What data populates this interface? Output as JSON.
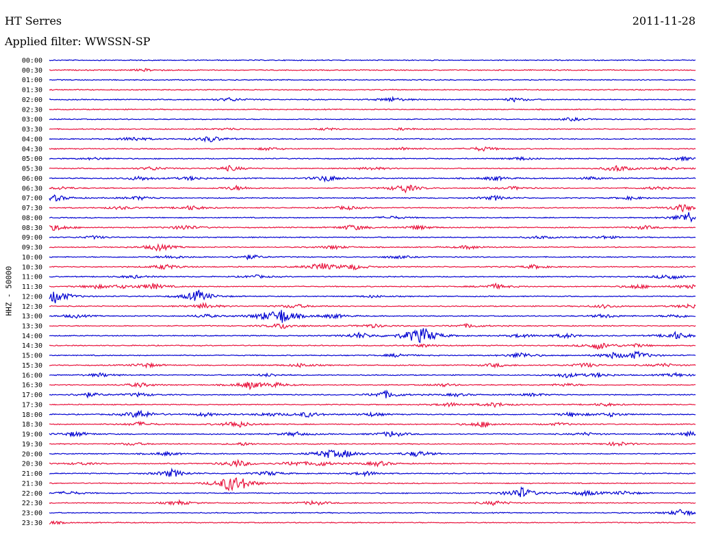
{
  "header": {
    "station": "HT Serres",
    "date": "2011-11-28",
    "filter": "Applied filter: WWSSN-SP"
  },
  "chart_data": {
    "type": "line",
    "ylabel": "HHZ - 50000",
    "colors": [
      "#0000d0",
      "#e8103a"
    ],
    "rows": [
      {
        "time": "00:00",
        "events": []
      },
      {
        "time": "00:30",
        "events": [
          [
            0.15,
            0.3
          ]
        ]
      },
      {
        "time": "01:00",
        "events": []
      },
      {
        "time": "01:30",
        "events": []
      },
      {
        "time": "02:00",
        "events": [
          [
            0.28,
            0.5
          ],
          [
            0.53,
            0.6
          ],
          [
            0.72,
            0.5
          ]
        ]
      },
      {
        "time": "02:30",
        "events": []
      },
      {
        "time": "03:00",
        "events": [
          [
            0.81,
            0.4
          ]
        ]
      },
      {
        "time": "03:30",
        "events": [
          [
            0.28,
            0.3
          ],
          [
            0.43,
            0.3
          ],
          [
            0.55,
            0.3
          ]
        ]
      },
      {
        "time": "04:00",
        "events": [
          [
            0.13,
            0.6
          ],
          [
            0.25,
            0.8
          ]
        ]
      },
      {
        "time": "04:30",
        "events": [
          [
            0.34,
            0.4
          ],
          [
            0.55,
            0.4
          ],
          [
            0.67,
            0.6
          ]
        ]
      },
      {
        "time": "05:00",
        "events": [
          [
            0.07,
            0.3
          ],
          [
            0.73,
            0.4
          ],
          [
            0.98,
            0.5
          ]
        ]
      },
      {
        "time": "05:30",
        "events": [
          [
            0.16,
            0.5
          ],
          [
            0.28,
            0.7
          ],
          [
            0.5,
            0.4
          ],
          [
            0.88,
            0.9
          ],
          [
            0.96,
            0.4
          ]
        ]
      },
      {
        "time": "06:00",
        "events": [
          [
            0.14,
            0.6
          ],
          [
            0.22,
            0.5
          ],
          [
            0.43,
            0.9
          ],
          [
            0.69,
            0.6
          ],
          [
            0.84,
            0.4
          ]
        ]
      },
      {
        "time": "06:30",
        "events": [
          [
            0.02,
            0.4
          ],
          [
            0.29,
            0.6
          ],
          [
            0.55,
            1.2
          ],
          [
            0.72,
            0.4
          ],
          [
            0.94,
            0.4
          ]
        ]
      },
      {
        "time": "07:00",
        "events": [
          [
            0.01,
            0.8
          ],
          [
            0.14,
            0.5
          ],
          [
            0.69,
            0.6
          ],
          [
            0.9,
            0.4
          ]
        ]
      },
      {
        "time": "07:30",
        "events": [
          [
            0.11,
            0.4
          ],
          [
            0.22,
            0.6
          ],
          [
            0.46,
            0.5
          ],
          [
            0.98,
            1.0
          ]
        ]
      },
      {
        "time": "08:00",
        "events": [
          [
            0.53,
            0.4
          ],
          [
            0.99,
            1.6
          ]
        ]
      },
      {
        "time": "08:30",
        "events": [
          [
            0.01,
            0.8
          ],
          [
            0.21,
            0.7
          ],
          [
            0.47,
            0.8
          ],
          [
            0.57,
            0.6
          ],
          [
            0.92,
            0.5
          ]
        ]
      },
      {
        "time": "09:00",
        "events": [
          [
            0.07,
            0.4
          ],
          [
            0.76,
            0.4
          ],
          [
            0.86,
            0.4
          ]
        ]
      },
      {
        "time": "09:30",
        "events": [
          [
            0.17,
            1.0
          ],
          [
            0.44,
            0.5
          ],
          [
            0.65,
            0.5
          ]
        ]
      },
      {
        "time": "10:00",
        "events": [
          [
            0.19,
            0.5
          ],
          [
            0.31,
            0.6
          ],
          [
            0.54,
            0.4
          ]
        ]
      },
      {
        "time": "10:30",
        "events": [
          [
            0.18,
            0.7
          ],
          [
            0.42,
            1.1
          ],
          [
            0.47,
            0.7
          ],
          [
            0.75,
            0.5
          ]
        ]
      },
      {
        "time": "11:00",
        "events": [
          [
            0.13,
            0.4
          ],
          [
            0.32,
            0.4
          ],
          [
            0.96,
            0.8
          ]
        ]
      },
      {
        "time": "11:30",
        "events": [
          [
            0.07,
            0.5
          ],
          [
            0.11,
            0.4
          ],
          [
            0.16,
            0.8
          ],
          [
            0.69,
            0.7
          ],
          [
            0.91,
            0.6
          ],
          [
            0.99,
            0.6
          ]
        ]
      },
      {
        "time": "12:00",
        "events": [
          [
            0.01,
            1.9
          ],
          [
            0.23,
            1.6
          ],
          [
            0.5,
            0.3
          ]
        ]
      },
      {
        "time": "12:30",
        "events": [
          [
            0.24,
            0.7
          ],
          [
            0.38,
            0.6
          ],
          [
            0.86,
            0.5
          ],
          [
            0.99,
            0.6
          ]
        ]
      },
      {
        "time": "13:00",
        "events": [
          [
            0.04,
            0.5
          ],
          [
            0.24,
            0.5
          ],
          [
            0.33,
            0.6
          ],
          [
            0.36,
            2.0
          ],
          [
            0.44,
            0.6
          ],
          [
            0.86,
            0.5
          ],
          [
            0.97,
            0.5
          ]
        ]
      },
      {
        "time": "13:30",
        "events": [
          [
            0.36,
            0.8
          ],
          [
            0.5,
            0.5
          ],
          [
            0.65,
            0.5
          ]
        ]
      },
      {
        "time": "14:00",
        "events": [
          [
            0.48,
            0.8
          ],
          [
            0.56,
            0.8
          ],
          [
            0.58,
            2.0
          ],
          [
            0.73,
            0.5
          ],
          [
            0.8,
            0.6
          ],
          [
            0.97,
            1.0
          ]
        ]
      },
      {
        "time": "14:30",
        "events": [
          [
            0.58,
            0.4
          ],
          [
            0.85,
            1.0
          ],
          [
            0.91,
            0.4
          ]
        ]
      },
      {
        "time": "15:00",
        "events": [
          [
            0.54,
            0.5
          ],
          [
            0.73,
            0.8
          ],
          [
            0.87,
            0.7
          ],
          [
            0.91,
            1.0
          ]
        ]
      },
      {
        "time": "15:30",
        "events": [
          [
            0.15,
            0.6
          ],
          [
            0.39,
            0.5
          ],
          [
            0.69,
            0.5
          ],
          [
            0.83,
            0.6
          ],
          [
            0.95,
            0.5
          ]
        ]
      },
      {
        "time": "16:00",
        "events": [
          [
            0.08,
            0.5
          ],
          [
            0.34,
            0.4
          ],
          [
            0.8,
            0.6
          ],
          [
            0.85,
            0.5
          ],
          [
            0.97,
            0.5
          ]
        ]
      },
      {
        "time": "16:30",
        "events": [
          [
            0.14,
            0.6
          ],
          [
            0.31,
            1.0
          ],
          [
            0.35,
            0.5
          ],
          [
            0.61,
            0.4
          ],
          [
            0.8,
            0.4
          ]
        ]
      },
      {
        "time": "17:00",
        "events": [
          [
            0.06,
            0.6
          ],
          [
            0.14,
            0.5
          ],
          [
            0.52,
            1.0
          ],
          [
            0.63,
            0.4
          ],
          [
            0.75,
            0.4
          ]
        ]
      },
      {
        "time": "17:30",
        "events": [
          [
            0.62,
            0.5
          ],
          [
            0.69,
            0.6
          ],
          [
            0.86,
            0.4
          ]
        ]
      },
      {
        "time": "18:00",
        "events": [
          [
            0.14,
            1.2
          ],
          [
            0.24,
            0.5
          ],
          [
            0.34,
            0.5
          ],
          [
            0.4,
            0.7
          ],
          [
            0.5,
            0.5
          ],
          [
            0.81,
            0.6
          ],
          [
            0.87,
            0.5
          ]
        ]
      },
      {
        "time": "18:30",
        "events": [
          [
            0.14,
            0.6
          ],
          [
            0.29,
            1.0
          ],
          [
            0.67,
            0.8
          ],
          [
            0.79,
            0.4
          ]
        ]
      },
      {
        "time": "19:00",
        "events": [
          [
            0.04,
            0.7
          ],
          [
            0.38,
            0.6
          ],
          [
            0.53,
            0.8
          ],
          [
            0.83,
            0.4
          ],
          [
            0.99,
            0.6
          ]
        ]
      },
      {
        "time": "19:30",
        "events": [
          [
            0.13,
            0.4
          ],
          [
            0.3,
            0.4
          ],
          [
            0.88,
            0.6
          ]
        ]
      },
      {
        "time": "20:00",
        "events": [
          [
            0.18,
            0.5
          ],
          [
            0.43,
            1.0
          ],
          [
            0.46,
            0.8
          ],
          [
            0.57,
            0.8
          ]
        ]
      },
      {
        "time": "20:30",
        "events": [
          [
            0.05,
            0.4
          ],
          [
            0.29,
            1.0
          ],
          [
            0.38,
            0.6
          ],
          [
            0.42,
            0.6
          ],
          [
            0.51,
            0.7
          ]
        ]
      },
      {
        "time": "21:00",
        "events": [
          [
            0.19,
            1.1
          ],
          [
            0.34,
            0.6
          ],
          [
            0.49,
            0.6
          ]
        ]
      },
      {
        "time": "21:30",
        "events": [
          [
            0.28,
            2.0
          ],
          [
            0.3,
            0.8
          ]
        ]
      },
      {
        "time": "22:00",
        "events": [
          [
            0.03,
            0.5
          ],
          [
            0.73,
            1.6
          ],
          [
            0.83,
            0.7
          ],
          [
            0.89,
            0.5
          ]
        ]
      },
      {
        "time": "22:30",
        "events": [
          [
            0.2,
            0.6
          ],
          [
            0.41,
            0.6
          ],
          [
            0.69,
            0.6
          ]
        ]
      },
      {
        "time": "23:00",
        "events": [
          [
            0.98,
            1.0
          ]
        ]
      },
      {
        "time": "23:30",
        "events": [
          [
            0.0,
            0.5
          ]
        ]
      }
    ]
  }
}
